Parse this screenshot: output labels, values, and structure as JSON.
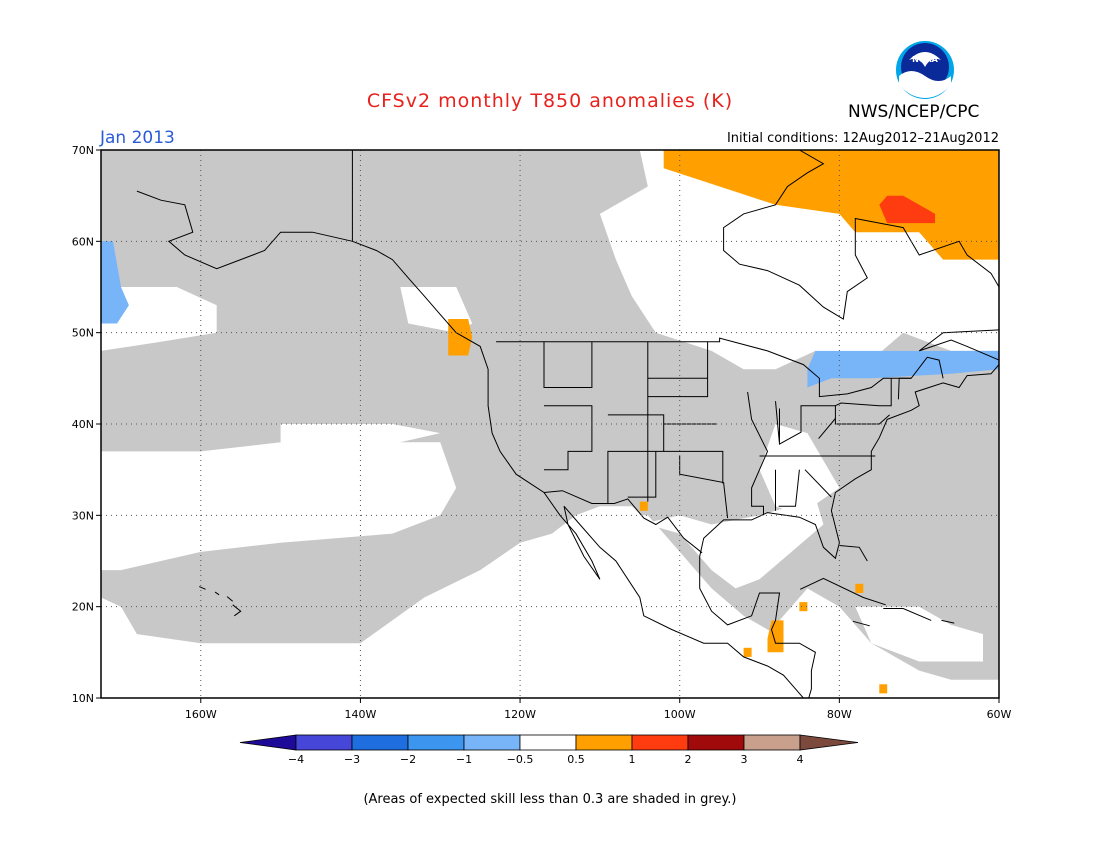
{
  "header": {
    "title": "CFSv2 monthly T850 anomalies (K)",
    "organization": "NWS/NCEP/CPC",
    "logo_text": "NOAA",
    "valid_month": "Jan 2013",
    "initial_conditions": "Initial conditions: 12Aug2012–21Aug2012"
  },
  "map": {
    "projection": "lat-lon",
    "lon_range": [
      -172.5,
      -60
    ],
    "lat_range": [
      10,
      70
    ],
    "lon_ticks": [
      {
        "value": -160,
        "label": "160W"
      },
      {
        "value": -140,
        "label": "140W"
      },
      {
        "value": -120,
        "label": "120W"
      },
      {
        "value": -100,
        "label": "100W"
      },
      {
        "value": -80,
        "label": "80W"
      },
      {
        "value": -60,
        "label": "60W"
      }
    ],
    "lat_ticks": [
      {
        "value": 10,
        "label": "10N"
      },
      {
        "value": 20,
        "label": "20N"
      },
      {
        "value": 30,
        "label": "30N"
      },
      {
        "value": 40,
        "label": "40N"
      },
      {
        "value": 50,
        "label": "50N"
      },
      {
        "value": 60,
        "label": "60N"
      },
      {
        "value": 70,
        "label": "70N"
      }
    ],
    "gridlines": "dotted",
    "grey_skill_color": "#c8c8c8",
    "anomaly_regions": [
      {
        "name": "north-atlantic-canada-warm",
        "class": "0.5 to 1",
        "color": "#ffa000",
        "polygon": [
          [
            -102,
            70
          ],
          [
            -60,
            70
          ],
          [
            -60,
            58
          ],
          [
            -67,
            58
          ],
          [
            -70,
            61
          ],
          [
            -78,
            61
          ],
          [
            -80,
            63
          ],
          [
            -88,
            64
          ],
          [
            -95,
            66
          ],
          [
            -102,
            68
          ]
        ]
      },
      {
        "name": "labrador-warm-core",
        "class": "1 to 2",
        "color": "#ff3c10",
        "polygon": [
          [
            -74,
            65
          ],
          [
            -72,
            65
          ],
          [
            -70,
            64
          ],
          [
            -68,
            63
          ],
          [
            -68,
            62
          ],
          [
            -74,
            62
          ],
          [
            -75,
            64
          ]
        ]
      },
      {
        "name": "vancouver-island-warm",
        "class": "0.5 to 1",
        "color": "#ffa000",
        "polygon": [
          [
            -129,
            51.5
          ],
          [
            -126.5,
            51.5
          ],
          [
            -126,
            49.5
          ],
          [
            -126.5,
            47.5
          ],
          [
            -129,
            47.5
          ]
        ]
      },
      {
        "name": "bering-sea-cool",
        "class": "-1 to -0.5",
        "color": "#78b4f8",
        "polygon": [
          [
            -172.5,
            60
          ],
          [
            -171,
            60
          ],
          [
            -170,
            55
          ],
          [
            -169,
            53
          ],
          [
            -170.5,
            51
          ],
          [
            -172.5,
            51
          ]
        ]
      },
      {
        "name": "northeast-cool",
        "class": "-1 to -0.5",
        "color": "#78b4f8",
        "polygon": [
          [
            -83,
            48
          ],
          [
            -60,
            48
          ],
          [
            -60,
            46
          ],
          [
            -66,
            45.5
          ],
          [
            -76,
            45
          ],
          [
            -81,
            45
          ],
          [
            -84,
            44
          ],
          [
            -84,
            46
          ]
        ]
      },
      {
        "name": "texas-warm-dot",
        "class": "0.5 to 1",
        "color": "#ffa000",
        "polygon": [
          [
            -105,
            31.5
          ],
          [
            -104,
            31.5
          ],
          [
            -104,
            30.5
          ],
          [
            -105,
            30.5
          ]
        ]
      },
      {
        "name": "central-america-warm",
        "class": "0.5 to 1",
        "color": "#ffa000",
        "polygon": [
          [
            -88.5,
            18.5
          ],
          [
            -87,
            18.5
          ],
          [
            -87,
            15
          ],
          [
            -89,
            15
          ],
          [
            -89,
            16.5
          ]
        ]
      },
      {
        "name": "guatemala-warm-dot",
        "class": "0.5 to 1",
        "color": "#ffa000",
        "polygon": [
          [
            -92,
            15.5
          ],
          [
            -91,
            15.5
          ],
          [
            -91,
            14.5
          ],
          [
            -92,
            14.5
          ]
        ]
      },
      {
        "name": "yucatan-warm-dot",
        "class": "0.5 to 1",
        "color": "#ffa000",
        "polygon": [
          [
            -85,
            20.5
          ],
          [
            -84,
            20.5
          ],
          [
            -84,
            19.5
          ],
          [
            -85,
            19.5
          ]
        ]
      },
      {
        "name": "cuba-warm-dot",
        "class": "0.5 to 1",
        "color": "#ffa000",
        "polygon": [
          [
            -78,
            22.5
          ],
          [
            -77,
            22.5
          ],
          [
            -77,
            21.5
          ],
          [
            -78,
            21.5
          ]
        ]
      },
      {
        "name": "caribbean-warm-dot",
        "class": "0.5 to 1",
        "color": "#ffa000",
        "polygon": [
          [
            -75,
            11.5
          ],
          [
            -74,
            11.5
          ],
          [
            -74,
            10.5
          ],
          [
            -75,
            10.5
          ]
        ]
      }
    ]
  },
  "legend": {
    "labels": [
      "−4",
      "−3",
      "−2",
      "−1",
      "−0.5",
      "0.5",
      "1",
      "2",
      "3",
      "4"
    ],
    "colors": [
      "#1e0a98",
      "#4646d8",
      "#1e6ee0",
      "#3c96f0",
      "#78b4f8",
      "#ffffff",
      "#ffa000",
      "#ff3c10",
      "#a00a0a",
      "#c8a08c",
      "#7b4a3c"
    ]
  },
  "footnote": "(Areas of expected skill less than 0.3 are shaded in grey.)"
}
